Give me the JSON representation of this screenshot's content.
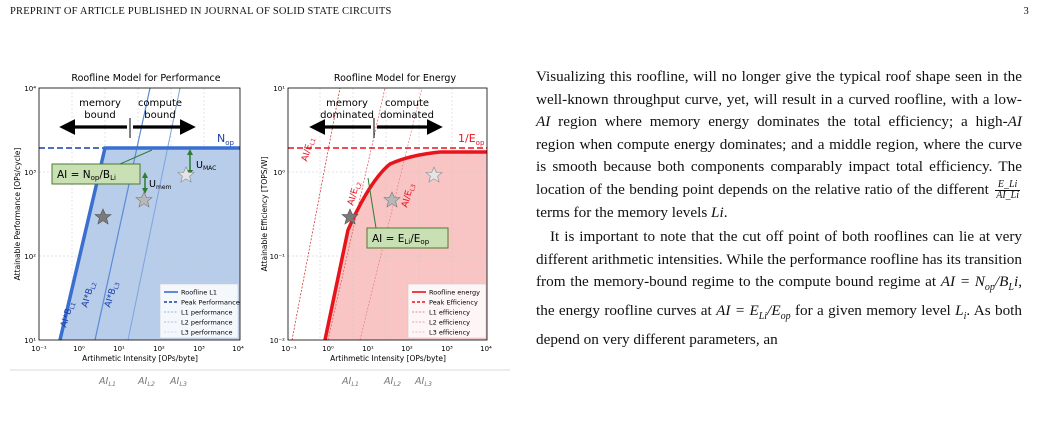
{
  "header": {
    "left": "PREPRINT OF ARTICLE PUBLISHED IN JOURNAL OF SOLID STATE CIRCUITS",
    "page_number": "3"
  },
  "figure": {
    "left_plot": {
      "title": "Roofline Model for Performance",
      "ylabel": "Attainable Performance [OPs/cycle]",
      "xlabel": "Artihmetic Intensity [OPs/byte]",
      "x_ticks": [
        "10⁻¹",
        "10⁰",
        "10¹",
        "10²",
        "10³",
        "10⁴"
      ],
      "y_ticks": [
        "10¹",
        "10²",
        "10³",
        "10⁴"
      ],
      "annot_memory": "memory",
      "annot_bound": "bound",
      "annot_compute": "compute",
      "annot_bound2": "bound",
      "annot_nop": "N",
      "annot_nop_sub": "op",
      "annot_umac": "U",
      "annot_umac_sub": "MAC",
      "annot_umem": "U",
      "annot_umem_sub": "mem",
      "box_label": "AI = N",
      "box_sub1": "op",
      "box_mid": "/B",
      "box_sub2": "Li",
      "ai_labels": [
        "AI*B",
        "AI*B",
        "AI*B"
      ],
      "ai_subs": [
        "L1",
        "L2",
        "L3"
      ],
      "legend": [
        "Roofline L1",
        "Peak Performance",
        "L1 performance",
        "L2 performance",
        "L3 performance"
      ]
    },
    "right_plot": {
      "title": "Roofline Model for Energy",
      "ylabel": "Attainable Efficiency [TOPS/W]",
      "xlabel": "Artihmetic Intensity [OPs/byte]",
      "x_ticks": [
        "10⁻¹",
        "10⁰",
        "10¹",
        "10²",
        "10³",
        "10⁴"
      ],
      "y_ticks": [
        "10⁻²",
        "10⁻¹",
        "10⁰",
        "10¹"
      ],
      "annot_memory": "memory",
      "annot_dominated": "dominated",
      "annot_compute": "compute",
      "annot_dominated2": "dominated",
      "annot_eop": "1/E",
      "annot_eop_sub": "op",
      "box_label": "AI = E",
      "box_sub1": "Li",
      "box_mid": "/E",
      "box_sub2": "op",
      "ai_labels": [
        "AI/E",
        "AI/E",
        "AI/E"
      ],
      "ai_subs": [
        "L1",
        "L2",
        "L3"
      ],
      "legend": [
        "Roofline energy",
        "Peak Efficiency",
        "L1 efficiency",
        "L2 efficiency",
        "L3 efficiency"
      ]
    },
    "bottom_labels": [
      "AI",
      "AI",
      "AI"
    ],
    "bottom_subs": [
      "L1",
      "L2",
      "L3"
    ]
  },
  "body": {
    "p1_a": "Visualizing this roofline, will no longer give the typical roof shape seen in the well-known throughput curve, yet, will result in a curved roofline, with a low-",
    "p1_ai1": "AI",
    "p1_b": " region where memory energy dominates the total efficiency; a high-",
    "p1_ai2": "AI",
    "p1_c": " region when compute energy dominates; and a middle region, where the curve is smooth because both components comparably impact total efficiency. The location of the bending point depends on the relative ratio of the different ",
    "p1_frac_num": "E_Li",
    "p1_frac_den": "AI_Li",
    "p1_d": " terms for the memory levels ",
    "p1_li": "Li",
    "p1_e": ".",
    "p2_a": "It is important to note that the cut off point of both rooflines can lie at very different arithmetic intensities. While the performance roofline has its transition from the memory-bound regime to the compute bound regime at ",
    "p2_eq1": "AI = N",
    "p2_eq1_sub": "op",
    "p2_eq1_b": "/B",
    "p2_eq1_sub2": "L",
    "p2_eq1_c": "i",
    "p2_b": ", the energy roofline curves at ",
    "p2_eq2": "AI = E",
    "p2_eq2_sub": "Li",
    "p2_eq2_b": "/E",
    "p2_eq2_sub2": "op",
    "p2_c": " for a given memory level ",
    "p2_l": "L",
    "p2_l_sub": "i",
    "p2_d": ". As both depend on very different parameters, an"
  },
  "colors": {
    "blue": "#3a6fd0",
    "blue_fill": "#c5d6ee",
    "red": "#e8141c",
    "red_fill": "#f8c4c4",
    "box_fill": "#c9e0b4",
    "box_border": "#4f7a2c",
    "arrow_green": "#2e7d32"
  }
}
